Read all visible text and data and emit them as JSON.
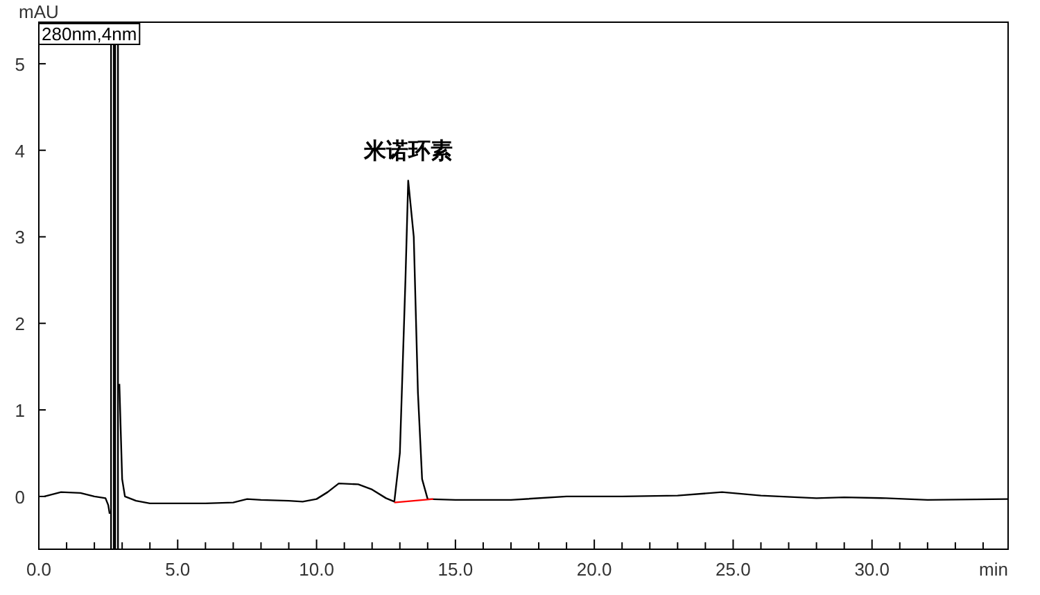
{
  "chart_data": {
    "type": "line",
    "xlabel": "min",
    "ylabel": "mAU",
    "legend": "top left",
    "grid": false,
    "xlim": [
      0,
      34.9
    ],
    "ylim": [
      -0.61,
      5.48
    ],
    "xticks": [
      {
        "value": 0,
        "label": "0.0"
      },
      {
        "value": 1,
        "label": null
      },
      {
        "value": 2,
        "label": null
      },
      {
        "value": 3,
        "label": null
      },
      {
        "value": 4,
        "label": null
      },
      {
        "value": 5,
        "label": "5.0"
      },
      {
        "value": 6,
        "label": null
      },
      {
        "value": 7,
        "label": null
      },
      {
        "value": 8,
        "label": null
      },
      {
        "value": 9,
        "label": null
      },
      {
        "value": 10,
        "label": "10.0"
      },
      {
        "value": 11,
        "label": null
      },
      {
        "value": 12,
        "label": null
      },
      {
        "value": 13,
        "label": null
      },
      {
        "value": 14,
        "label": null
      },
      {
        "value": 15,
        "label": "15.0"
      },
      {
        "value": 16,
        "label": null
      },
      {
        "value": 17,
        "label": null
      },
      {
        "value": 18,
        "label": null
      },
      {
        "value": 19,
        "label": null
      },
      {
        "value": 20,
        "label": "20.0"
      },
      {
        "value": 21,
        "label": null
      },
      {
        "value": 22,
        "label": null
      },
      {
        "value": 23,
        "label": null
      },
      {
        "value": 24,
        "label": null
      },
      {
        "value": 25,
        "label": "25.0"
      },
      {
        "value": 26,
        "label": null
      },
      {
        "value": 27,
        "label": null
      },
      {
        "value": 28,
        "label": null
      },
      {
        "value": 29,
        "label": null
      },
      {
        "value": 30,
        "label": "30.0"
      },
      {
        "value": 31,
        "label": null
      },
      {
        "value": 32,
        "label": null
      },
      {
        "value": 33,
        "label": null
      },
      {
        "value": 34,
        "label": null
      }
    ],
    "yticks": [
      0,
      1,
      2,
      3,
      4,
      5
    ],
    "annotations": [
      {
        "text": "米诺环素",
        "x": 13.3,
        "y": 3.65
      }
    ],
    "series": [
      {
        "name": "280nm,4nm",
        "color": "#000000",
        "x": [
          0.2,
          0.8,
          1.5,
          2.0,
          2.4,
          2.5,
          2.55,
          2.6,
          2.7,
          2.75,
          2.85,
          2.9,
          3.0,
          3.1,
          3.5,
          4.0,
          5.0,
          6.0,
          7.0,
          7.5,
          8.0,
          9.0,
          9.5,
          10.0,
          10.4,
          10.8,
          11.5,
          12.0,
          12.5,
          12.8,
          13.0,
          13.2,
          13.3,
          13.5,
          13.65,
          13.8,
          14.0,
          15.0,
          17.0,
          19.0,
          21.0,
          23.0,
          24.6,
          26.0,
          28.0,
          29.0,
          30.5,
          32.0,
          34.9
        ],
        "values": [
          0.0,
          0.05,
          0.04,
          0.0,
          -0.02,
          -0.1,
          -0.2,
          null,
          null,
          null,
          null,
          1.3,
          0.2,
          0.0,
          -0.05,
          -0.08,
          -0.08,
          -0.08,
          -0.07,
          -0.03,
          -0.04,
          -0.05,
          -0.06,
          -0.03,
          0.05,
          0.15,
          0.14,
          0.08,
          -0.02,
          -0.06,
          0.5,
          2.5,
          3.65,
          3.0,
          1.2,
          0.2,
          -0.03,
          -0.04,
          -0.04,
          0.0,
          0.0,
          0.01,
          0.05,
          0.01,
          -0.02,
          -0.01,
          -0.02,
          -0.04,
          -0.03
        ]
      },
      {
        "color": "#ff0000",
        "x": [
          12.8,
          14.2
        ],
        "values": [
          -0.07,
          -0.03
        ]
      }
    ]
  }
}
